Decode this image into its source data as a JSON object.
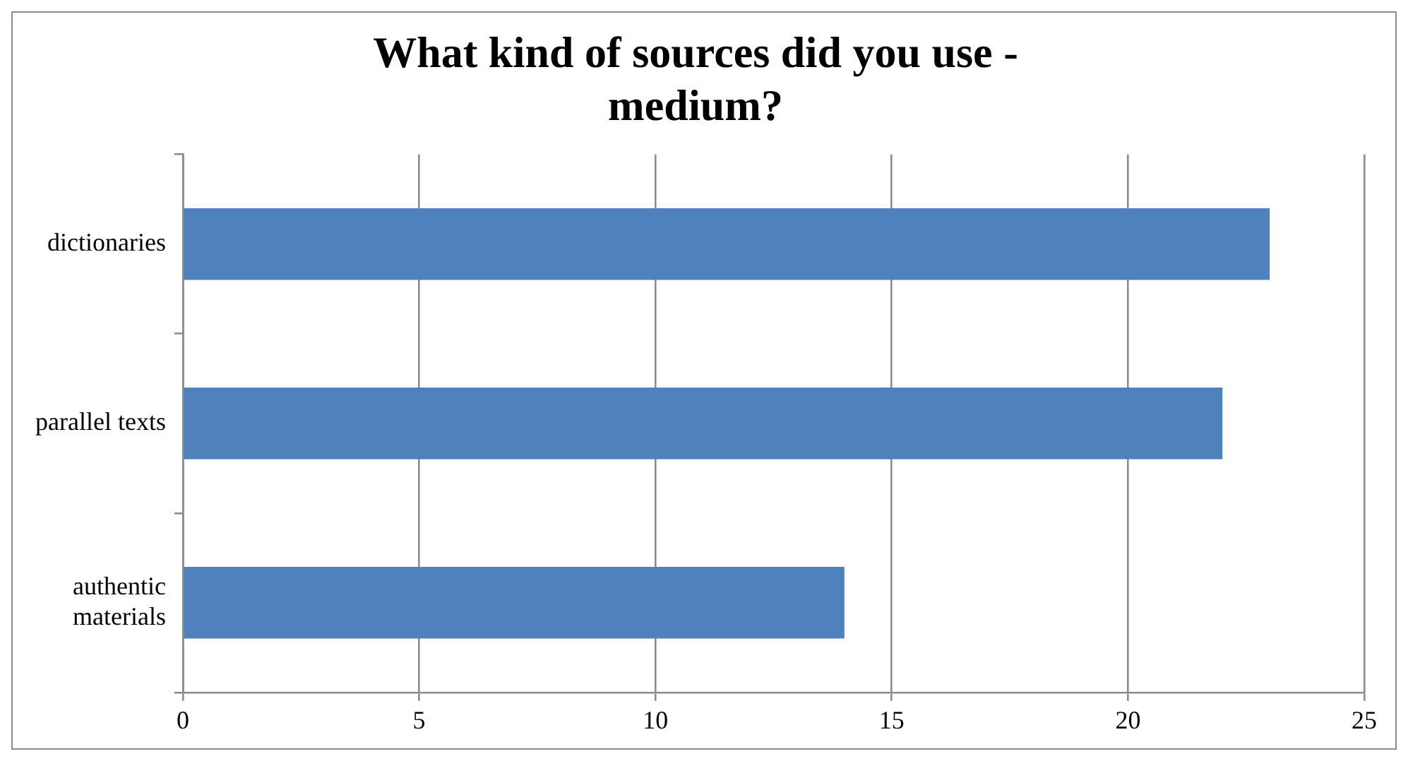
{
  "chart_data": {
    "type": "bar",
    "orientation": "horizontal",
    "title": "What kind of sources did you use - medium?",
    "categories": [
      "dictionaries",
      "parallel texts",
      "authentic materials"
    ],
    "values": [
      23,
      22,
      14
    ],
    "color": "#4f81bd",
    "xlim": [
      0,
      25
    ],
    "xticks": [
      0,
      5,
      10,
      15,
      20,
      25
    ],
    "grid": "x",
    "legend": false
  }
}
